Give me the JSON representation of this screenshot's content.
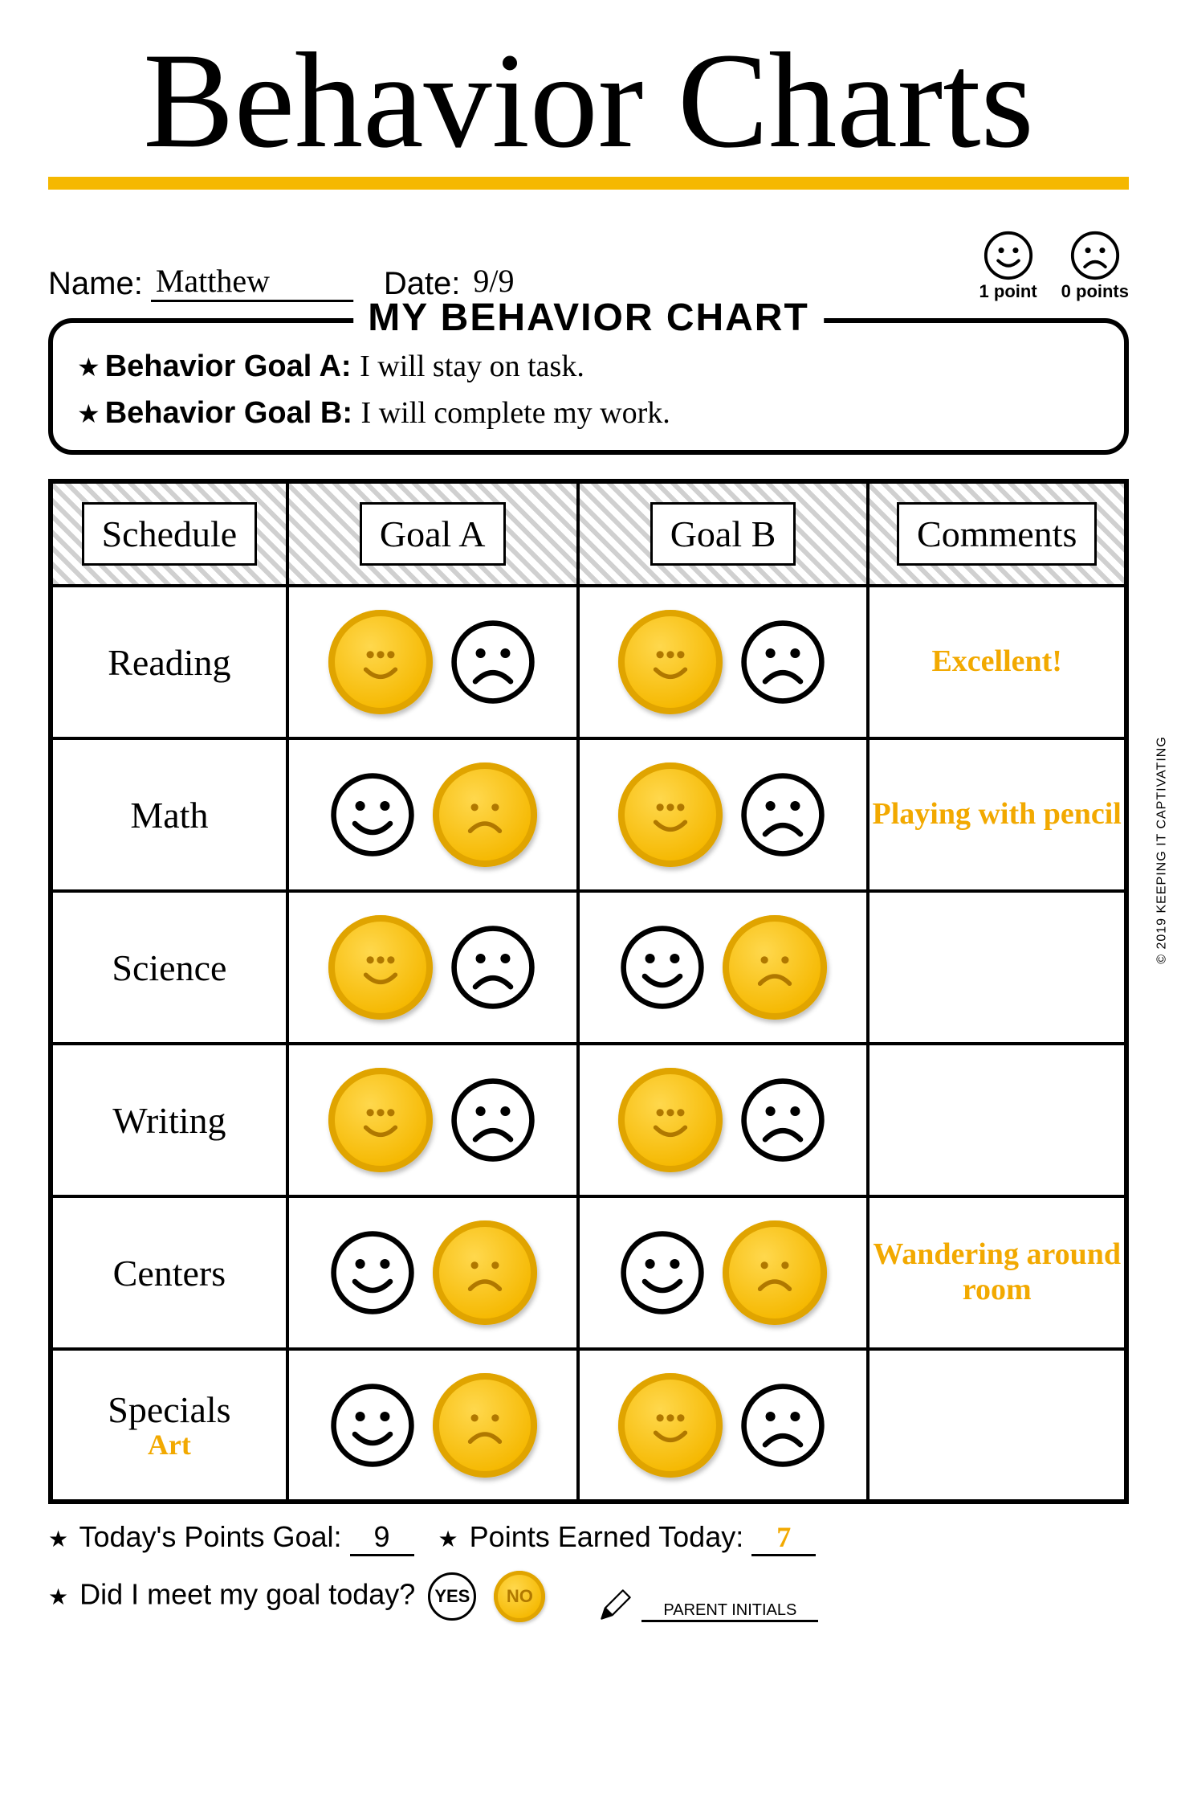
{
  "colors": {
    "accent": "#f5b800",
    "accent_text": "#f2a900",
    "coin_edge": "#e0a400",
    "background": "#ffffff",
    "border": "#000000",
    "hatch_light": "#ffffff",
    "hatch_dark": "#d0d0d0"
  },
  "page_title": "Behavior Charts",
  "student": {
    "name_label": "Name:",
    "name": "Matthew",
    "date_label": "Date:",
    "date": "9/9"
  },
  "legend": {
    "happy_label": "1 point",
    "sad_label": "0 points"
  },
  "chart_title": "MY BEHAVIOR CHART",
  "goals": {
    "a_label": "Behavior Goal A:",
    "a_text": "I will stay on task.",
    "b_label": "Behavior Goal B:",
    "b_text": "I will complete my work."
  },
  "table": {
    "columns": [
      "Schedule",
      "Goal A",
      "Goal B",
      "Comments"
    ],
    "rows": [
      {
        "subject": "Reading",
        "sub_note": "",
        "goal_a": {
          "happy_selected": true,
          "sad_selected": false
        },
        "goal_b": {
          "happy_selected": true,
          "sad_selected": false
        },
        "comment": "Excellent!"
      },
      {
        "subject": "Math",
        "sub_note": "",
        "goal_a": {
          "happy_selected": false,
          "sad_selected": true
        },
        "goal_b": {
          "happy_selected": true,
          "sad_selected": false
        },
        "comment": "Playing with pencil"
      },
      {
        "subject": "Science",
        "sub_note": "",
        "goal_a": {
          "happy_selected": true,
          "sad_selected": false
        },
        "goal_b": {
          "happy_selected": false,
          "sad_selected": true
        },
        "comment": ""
      },
      {
        "subject": "Writing",
        "sub_note": "",
        "goal_a": {
          "happy_selected": true,
          "sad_selected": false
        },
        "goal_b": {
          "happy_selected": true,
          "sad_selected": false
        },
        "comment": ""
      },
      {
        "subject": "Centers",
        "sub_note": "",
        "goal_a": {
          "happy_selected": false,
          "sad_selected": true
        },
        "goal_b": {
          "happy_selected": false,
          "sad_selected": true
        },
        "comment": "Wandering around room"
      },
      {
        "subject": "Specials",
        "sub_note": "Art",
        "goal_a": {
          "happy_selected": false,
          "sad_selected": true
        },
        "goal_b": {
          "happy_selected": true,
          "sad_selected": false
        },
        "comment": ""
      }
    ]
  },
  "footer": {
    "points_goal_label": "Today's Points Goal:",
    "points_goal": "9",
    "points_earned_label": "Points Earned Today:",
    "points_earned": "7",
    "meet_goal_label": "Did I meet my goal today?",
    "yes_label": "YES",
    "no_label": "NO",
    "goal_met": false,
    "parent_initials_label": "PARENT INITIALS"
  },
  "copyright": "© 2019  KEEPING IT CAPTIVATING"
}
